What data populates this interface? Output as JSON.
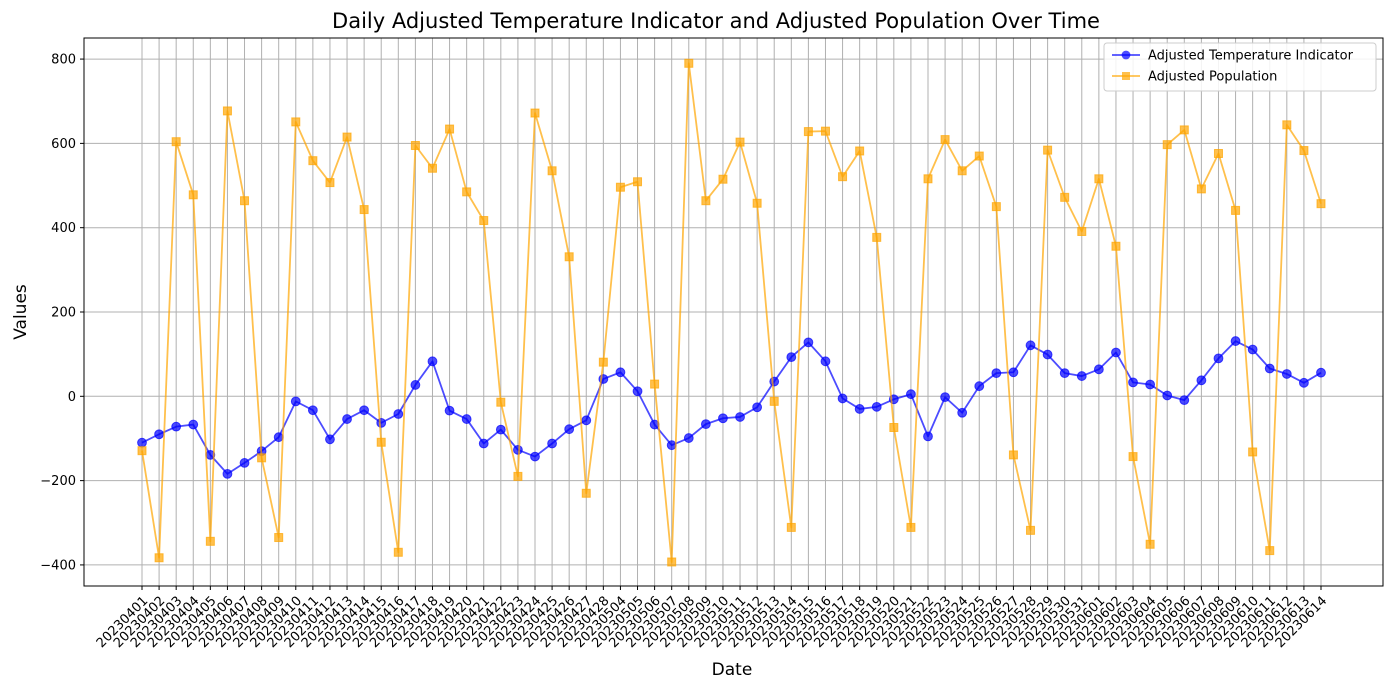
{
  "chart_data": {
    "type": "line",
    "title": "Daily Adjusted Temperature Indicator and Adjusted Population Over Time",
    "xlabel": "Date",
    "ylabel": "Values",
    "ylim": [
      -450,
      850
    ],
    "yticks": [
      -400,
      -200,
      0,
      200,
      400,
      600,
      800
    ],
    "yticklabels": [
      "−400",
      "−200",
      "0",
      "200",
      "400",
      "600",
      "800"
    ],
    "grid": true,
    "legend_position": "top-right",
    "categories": [
      "20230401",
      "20230402",
      "20230403",
      "20230404",
      "20230405",
      "20230406",
      "20230407",
      "20230408",
      "20230409",
      "20230410",
      "20230411",
      "20230412",
      "20230413",
      "20230414",
      "20230415",
      "20230416",
      "20230417",
      "20230418",
      "20230419",
      "20230420",
      "20230421",
      "20230422",
      "20230423",
      "20230424",
      "20230425",
      "20230426",
      "20230427",
      "20230428",
      "20230504",
      "20230505",
      "20230506",
      "20230507",
      "20230508",
      "20230509",
      "20230510",
      "20230511",
      "20230512",
      "20230513",
      "20230514",
      "20230515",
      "20230516",
      "20230517",
      "20230518",
      "20230519",
      "20230520",
      "20230521",
      "20230522",
      "20230523",
      "20230524",
      "20230525",
      "20230526",
      "20230527",
      "20230528",
      "20230529",
      "20230530",
      "20230531",
      "20230601",
      "20230602",
      "20230603",
      "20230604",
      "20230605",
      "20230606",
      "20230607",
      "20230608",
      "20230609",
      "20230610",
      "20230611",
      "20230612",
      "20230613",
      "20230614"
    ],
    "series": [
      {
        "name": "Adjusted Temperature Indicator",
        "color": "#0000ff",
        "marker": "circle",
        "values": [
          -110,
          -90,
          -72,
          -67,
          -139,
          -184,
          -158,
          -130,
          -97,
          -12,
          -33,
          -102,
          -54,
          -33,
          -63,
          -42,
          27,
          83,
          -34,
          -54,
          -112,
          -79,
          -127,
          -143,
          -112,
          -78,
          -57,
          41,
          57,
          12,
          -67,
          -116,
          -99,
          -66,
          -52,
          -49,
          -26,
          35,
          93,
          128,
          83,
          -5,
          -30,
          -25,
          -7,
          5,
          -95,
          -2,
          -39,
          24,
          55,
          57,
          121,
          99,
          55,
          48,
          64,
          104,
          33,
          28,
          2,
          -9,
          38,
          90,
          131,
          111,
          66,
          53,
          32,
          56
        ]
      },
      {
        "name": "Adjusted Population",
        "color": "#ffa500",
        "marker": "square",
        "values": [
          -129,
          -383,
          604,
          478,
          -344,
          677,
          464,
          -146,
          -335,
          651,
          559,
          507,
          615,
          443,
          -109,
          -370,
          595,
          541,
          634,
          485,
          417,
          -14,
          -190,
          672,
          535,
          331,
          -230,
          81,
          496,
          509,
          29,
          -393,
          790,
          464,
          515,
          603,
          458,
          -12,
          -311,
          628,
          629,
          521,
          582,
          377,
          -74,
          -311,
          516,
          609,
          535,
          570,
          450,
          -139,
          -318,
          584,
          472,
          391,
          516,
          356,
          -143,
          -351,
          597,
          632,
          492,
          576,
          441,
          -132,
          -366,
          644,
          583,
          457
        ]
      }
    ]
  }
}
